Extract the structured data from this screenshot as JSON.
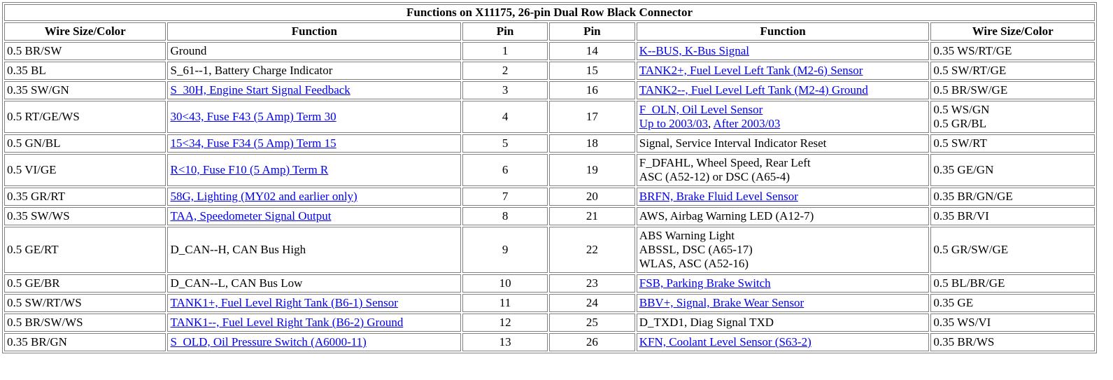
{
  "title": "Functions on X11175, 26-pin Dual Row Black Connector",
  "headers": [
    "Wire Size/Color",
    "Function",
    "Pin",
    "Pin",
    "Function",
    "Wire Size/Color"
  ],
  "rows": [
    {
      "lwire": [
        "0.5 BR/SW"
      ],
      "lfunc": [
        {
          "t": "Ground",
          "link": false
        }
      ],
      "lpin": "1",
      "rpin": "14",
      "rfunc": [
        {
          "t": "K--BUS, K-Bus Signal",
          "link": true
        }
      ],
      "rwire": [
        "0.35 WS/RT/GE"
      ]
    },
    {
      "lwire": [
        "0.35 BL"
      ],
      "lfunc": [
        {
          "t": "S_61--1, Battery Charge Indicator",
          "link": false
        }
      ],
      "lpin": "2",
      "rpin": "15",
      "rfunc": [
        {
          "t": "TANK2+, Fuel Level Left Tank (M2-6) Sensor",
          "link": true
        }
      ],
      "rwire": [
        "0.5 SW/RT/GE"
      ]
    },
    {
      "lwire": [
        "0.35 SW/GN"
      ],
      "lfunc": [
        {
          "t": "S_30H, Engine Start Signal Feedback",
          "link": true
        }
      ],
      "lpin": "3",
      "rpin": "16",
      "rfunc": [
        {
          "t": "TANK2--, Fuel Level Left Tank (M2-4) Ground",
          "link": true
        }
      ],
      "rwire": [
        "0.5 BR/SW/GE"
      ]
    },
    {
      "lwire": [
        "0.5 RT/GE/WS"
      ],
      "lfunc": [
        {
          "t": "30<43, Fuse F43 (5 Amp) Term 30",
          "link": true
        }
      ],
      "lpin": "4",
      "rpin": "17",
      "rfunc": [
        {
          "t": "F_OLN, Oil Level Sensor",
          "link": true
        },
        {
          "t": "Up to 2003/03",
          "link": true,
          "sep": ", "
        },
        {
          "t": "After 2003/03",
          "link": true,
          "same": true
        }
      ],
      "rwire": [
        "0.5 WS/GN",
        "0.5 GR/BL"
      ]
    },
    {
      "lwire": [
        "0.5 GN/BL"
      ],
      "lfunc": [
        {
          "t": "15<34, Fuse F34 (5 Amp) Term 15",
          "link": true
        }
      ],
      "lpin": "5",
      "rpin": "18",
      "rfunc": [
        {
          "t": "Signal, Service Interval Indicator Reset",
          "link": false
        }
      ],
      "rwire": [
        "0.5 SW/RT"
      ]
    },
    {
      "lwire": [
        "0.5 VI/GE"
      ],
      "lfunc": [
        {
          "t": "R<10, Fuse F10 (5 Amp) Term R",
          "link": true
        }
      ],
      "lpin": "6",
      "rpin": "19",
      "rfunc": [
        {
          "t": "F_DFAHL, Wheel Speed, Rear Left",
          "link": false
        },
        {
          "t": "ASC (A52-12) or DSC (A65-4)",
          "link": false
        }
      ],
      "rwire": [
        "0.35 GE/GN"
      ]
    },
    {
      "lwire": [
        "0.35 GR/RT"
      ],
      "lfunc": [
        {
          "t": "58G, Lighting (MY02 and earlier only)",
          "link": true
        }
      ],
      "lpin": "7",
      "rpin": "20",
      "rfunc": [
        {
          "t": "BRFN, Brake Fluid Level Sensor",
          "link": true
        }
      ],
      "rwire": [
        "0.35 BR/GN/GE"
      ]
    },
    {
      "lwire": [
        "0.35 SW/WS"
      ],
      "lfunc": [
        {
          "t": "TAA, Speedometer Signal Output",
          "link": true
        }
      ],
      "lpin": "8",
      "rpin": "21",
      "rfunc": [
        {
          "t": "AWS, Airbag Warning LED (A12-7)",
          "link": false
        }
      ],
      "rwire": [
        "0.35 BR/VI"
      ]
    },
    {
      "lwire": [
        "0.5 GE/RT"
      ],
      "lfunc": [
        {
          "t": "D_CAN--H, CAN Bus High",
          "link": false
        }
      ],
      "lpin": "9",
      "rpin": "22",
      "rfunc": [
        {
          "t": "ABS Warning Light",
          "link": false
        },
        {
          "t": "ABSSL, DSC (A65-17)",
          "link": false
        },
        {
          "t": "WLAS, ASC (A52-16)",
          "link": false
        }
      ],
      "rwire": [
        "0.5 GR/SW/GE"
      ]
    },
    {
      "lwire": [
        "0.5 GE/BR"
      ],
      "lfunc": [
        {
          "t": "D_CAN--L, CAN Bus Low",
          "link": false
        }
      ],
      "lpin": "10",
      "rpin": "23",
      "rfunc": [
        {
          "t": "FSB, Parking Brake Switch",
          "link": true
        }
      ],
      "rwire": [
        "0.5 BL/BR/GE"
      ]
    },
    {
      "lwire": [
        "0.5 SW/RT/WS"
      ],
      "lfunc": [
        {
          "t": "TANK1+, Fuel Level Right Tank (B6-1) Sensor",
          "link": true
        }
      ],
      "lpin": "11",
      "rpin": "24",
      "rfunc": [
        {
          "t": "BBV+, Signal, Brake Wear Sensor",
          "link": true
        }
      ],
      "rwire": [
        "0.35 GE"
      ]
    },
    {
      "lwire": [
        "0.5 BR/SW/WS"
      ],
      "lfunc": [
        {
          "t": "TANK1--, Fuel Level Right Tank (B6-2) Ground",
          "link": true
        }
      ],
      "lpin": "12",
      "rpin": "25",
      "rfunc": [
        {
          "t": "D_TXD1, Diag Signal TXD",
          "link": false
        }
      ],
      "rwire": [
        "0.35 WS/VI"
      ]
    },
    {
      "lwire": [
        "0.35 BR/GN"
      ],
      "lfunc": [
        {
          "t": "S_OLD, Oil Pressure Switch (A6000-11)",
          "link": true
        }
      ],
      "lpin": "13",
      "rpin": "26",
      "rfunc": [
        {
          "t": "KFN, Coolant Level Sensor (S63-2)",
          "link": true
        }
      ],
      "rwire": [
        "0.35 BR/WS"
      ]
    }
  ]
}
